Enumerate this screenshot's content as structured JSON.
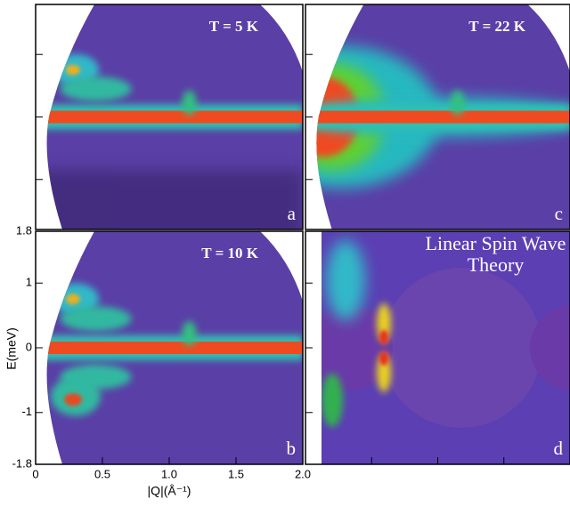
{
  "chart_data": {
    "type": "heatmap",
    "xlabel": "|Q|(Å⁻¹)",
    "ylabel": "E(meV)",
    "xlim": [
      0,
      2
    ],
    "xticks": [
      0,
      0.5,
      {
        "value": 1,
        "label": "1.0"
      },
      1.5,
      {
        "value": 2,
        "label": "2.0"
      }
    ],
    "ylim": [
      -1.8,
      1.8
    ],
    "yticks": [
      1.8,
      1,
      0,
      -1,
      -1.8
    ],
    "panels": [
      {
        "title": "T = 5 K",
        "label": "a"
      },
      {
        "title": "T = 22 K",
        "label": "c"
      },
      {
        "title": "T = 10 K",
        "label": "b"
      },
      {
        "title": "Linear Spin Wave Theory",
        "label": "d"
      }
    ]
  }
}
